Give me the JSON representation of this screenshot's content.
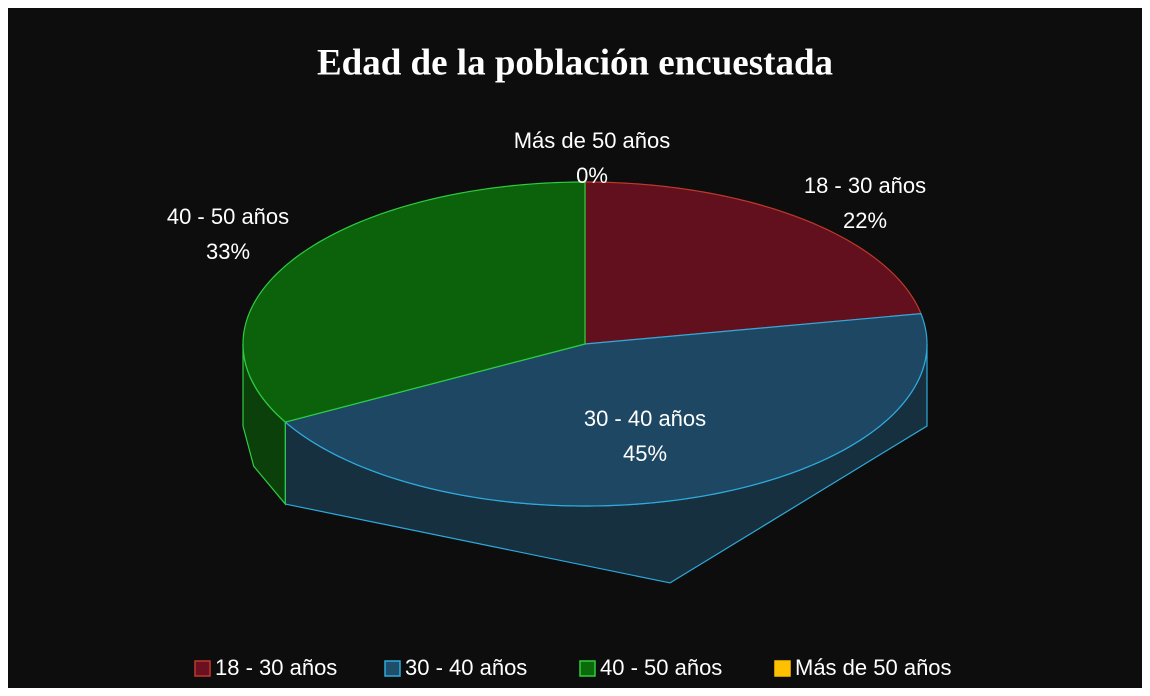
{
  "chart_data": {
    "type": "pie",
    "title": "Edad de la población encuestada",
    "categories": [
      "18 - 30 años",
      "30 - 40 años",
      "40 - 50 años",
      "Más de 50 años"
    ],
    "values": [
      22,
      45,
      33,
      0
    ],
    "value_labels": [
      "22%",
      "45%",
      "33%",
      "0%"
    ],
    "colors": [
      "#c0392b",
      "#2eaadc",
      "#2ecc40",
      "#ffc000"
    ],
    "legend": "bottom"
  }
}
